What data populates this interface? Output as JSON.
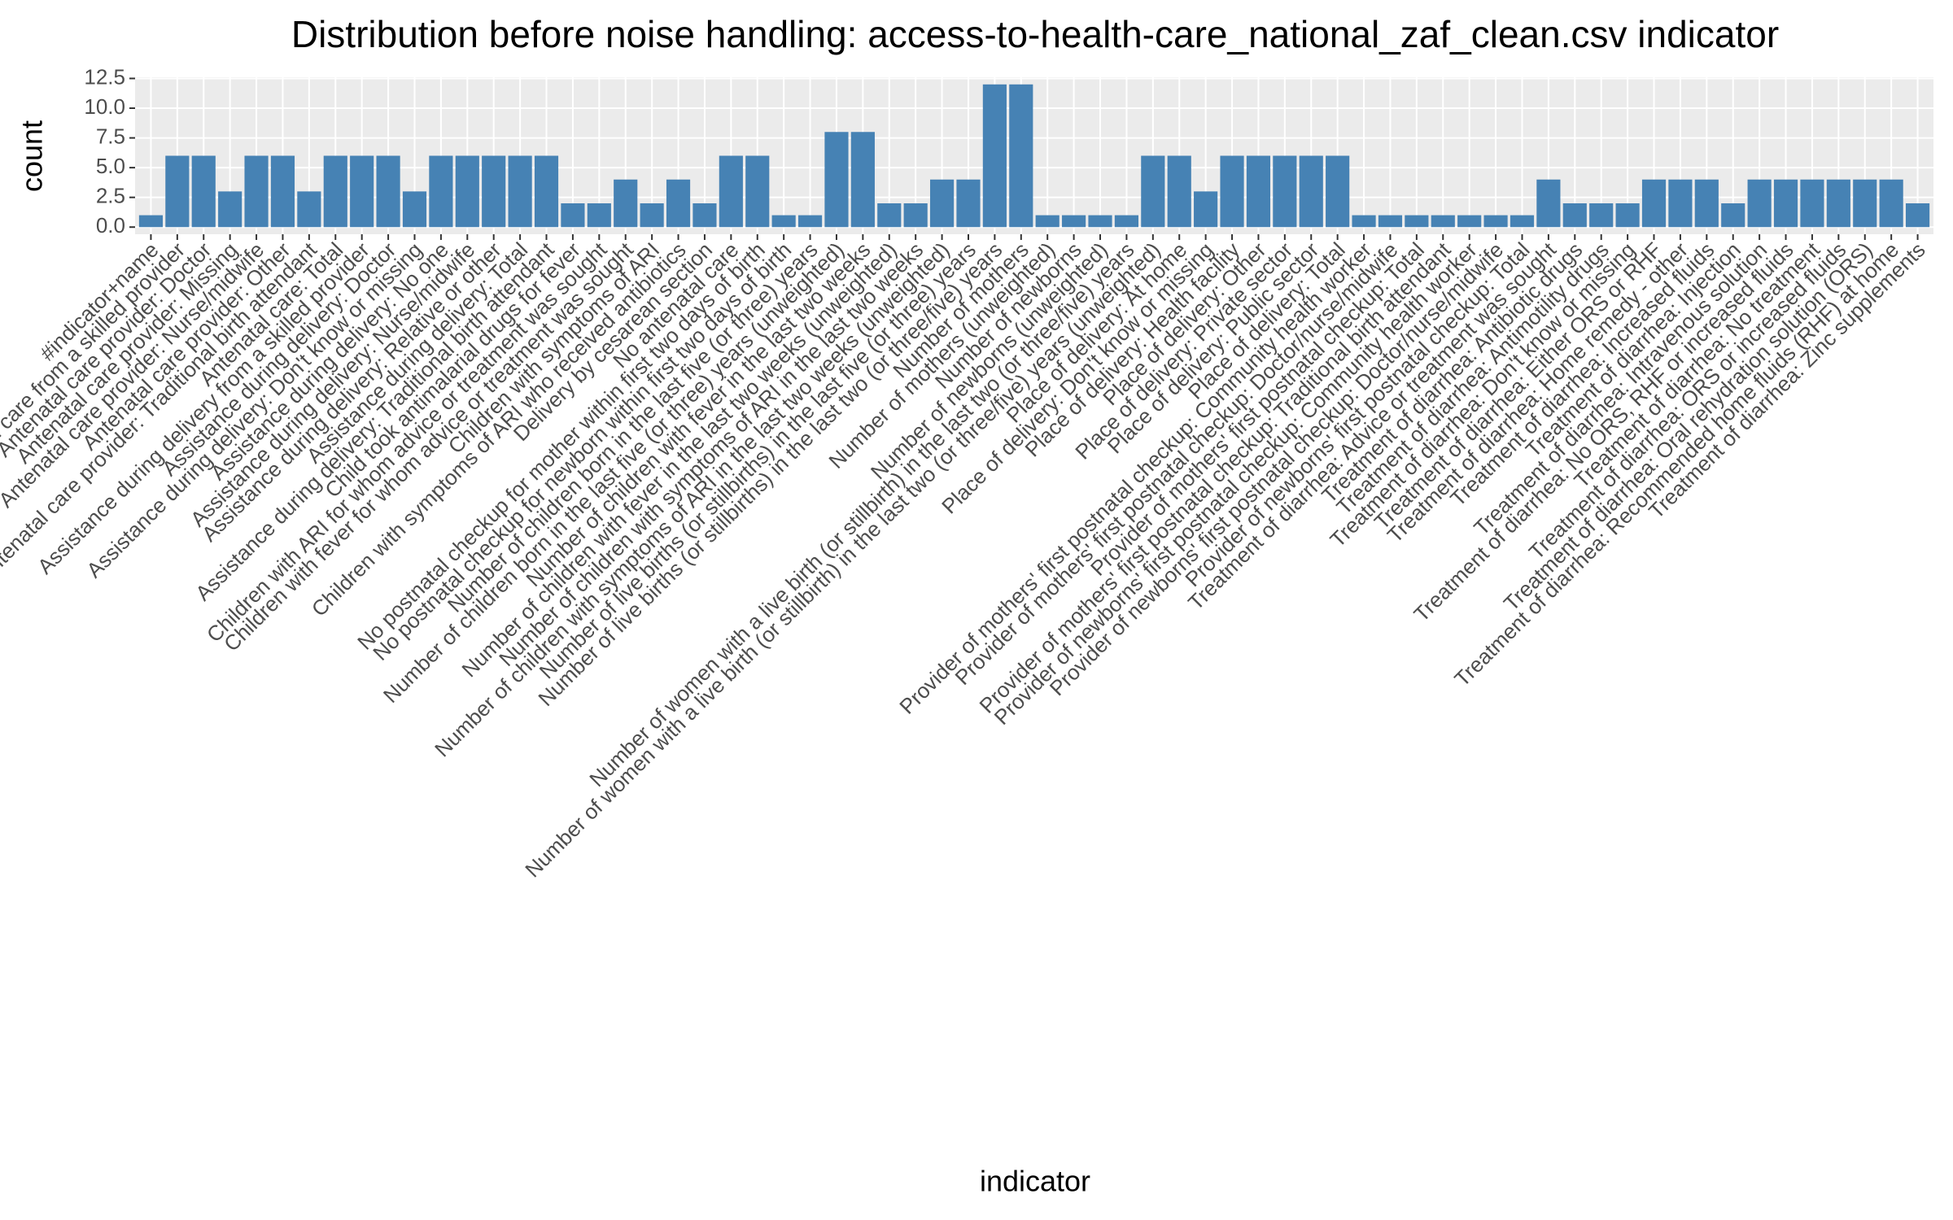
{
  "chart_data": {
    "type": "bar",
    "title": "Distribution before noise handling: access-to-health-care_national_zaf_clean.csv indicator",
    "x_label": "indicator",
    "y_label": "count",
    "color": "#4682b4",
    "grid": true,
    "ylim": [
      -0.6,
      12.6
    ],
    "yticks": [
      {
        "value": 0,
        "label": "0.0"
      },
      {
        "value": 2.5,
        "label": "2.5"
      },
      {
        "value": 5,
        "label": "5.0"
      },
      {
        "value": 7.5,
        "label": "7.5"
      },
      {
        "value": 10,
        "label": "10.0"
      },
      {
        "value": 12.5,
        "label": "12.5"
      }
    ],
    "categories": [
      "#indicator+name",
      "Antenatal care from a skilled provider",
      "Antenatal care provider: Doctor",
      "Antenatal care provider: Missing",
      "Antenatal care provider: Nurse/midwife",
      "Antenatal care provider: Other",
      "Antenatal care provider: Traditional birth attendant",
      "Antenatal care: Total",
      "Assistance during delivery from a skilled provider",
      "Assistance during delivery: Doctor",
      "Assistance during delivery: Don't know or missing",
      "Assistance during delivery: No one",
      "Assistance during delivery: Nurse/midwife",
      "Assistance during delivery: Relative or other",
      "Assistance during delivery: Total",
      "Assistance during delivery: Traditional birth attendant",
      "Child took antimalarial drugs for fever",
      "Children with ARI for whom advice or treatment was sought",
      "Children with fever for whom advice or treatment was sought",
      "Children with symptoms of ARI",
      "Children with symptoms of ARI who received antibiotics",
      "Delivery by cesarean section",
      "No antenatal care",
      "No postnatal checkup for mother within first two days of birth",
      "No postnatal checkup for newborn within first two days of birth",
      "Number of children born in the last five (or three) years",
      "Number of children born in the last five (or three) years (unweighted)",
      "Number of children with fever in the last two weeks",
      "Number of children with fever in the last two weeks (unweighted)",
      "Number of children with symptoms of ARI in the last two weeks",
      "Number of children with symptoms of ARI in the last two weeks (unweighted)",
      "Number of live births (or stillbirths) in the last five (or three) years",
      "Number of live births (or stillbirths) in the last two (or three/five) years",
      "Number of mothers",
      "Number of mothers (unweighted)",
      "Number of newborns",
      "Number of newborns (unweighted)",
      "Number of women with a live birth (or stillbirth) in the last two (or three/five) years",
      "Number of women with a live birth (or stillbirth) in the last two (or three/five) years (unweighted)",
      "Place of delivery: At home",
      "Place of delivery: Don't know or missing",
      "Place of delivery: Health facility",
      "Place of delivery: Other",
      "Place of delivery: Private sector",
      "Place of delivery: Public sector",
      "Place of delivery: Total",
      "Provider of mothers' first postnatal checkup: Community health worker",
      "Provider of mothers' first postnatal checkup: Doctor/nurse/midwife",
      "Provider of mothers' first postnatal checkup: Total",
      "Provider of mothers' first postnatal checkup: Traditional birth attendant",
      "Provider of newborns' first postnatal checkup: Community health worker",
      "Provider of newborns' first postnatal checkup: Doctor/nurse/midwife",
      "Provider of newborns' first postnatal checkup: Total",
      "Treatment of diarrhea: Advice or treatment was sought",
      "Treatment of diarrhea: Antibiotic drugs",
      "Treatment of diarrhea: Antimotility drugs",
      "Treatment of diarrhea: Don't know or missing",
      "Treatment of diarrhea: Either ORS or RHF",
      "Treatment of diarrhea: Home remedy - other",
      "Treatment of diarrhea: Increased fluids",
      "Treatment of diarrhea: Injection",
      "Treatment of diarrhea: Intravenous solution",
      "Treatment of diarrhea: No ORS, RHF or increased fluids",
      "Treatment of diarrhea: No treatment",
      "Treatment of diarrhea: ORS or increased fluids",
      "Treatment of diarrhea: Oral rehydration solution (ORS)",
      "Treatment of diarrhea: Recommended home fluids (RHF) at home",
      "Treatment of diarrhea: Zinc supplements"
    ],
    "values": [
      1,
      6,
      6,
      3,
      6,
      6,
      3,
      6,
      6,
      6,
      3,
      6,
      6,
      6,
      6,
      6,
      2,
      2,
      4,
      2,
      4,
      2,
      6,
      6,
      1,
      1,
      8,
      8,
      2,
      2,
      4,
      4,
      12,
      12,
      1,
      1,
      1,
      1,
      6,
      6,
      3,
      6,
      6,
      6,
      6,
      6,
      1,
      1,
      1,
      1,
      1,
      1,
      1,
      4,
      2,
      2,
      2,
      4,
      4,
      4,
      2,
      4,
      4,
      4,
      4,
      4,
      4,
      2
    ]
  }
}
